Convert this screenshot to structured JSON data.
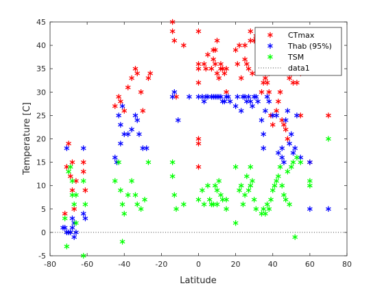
{
  "chart_data": {
    "type": "scatter",
    "xlabel": "Latitude",
    "ylabel": "Temperature [C]",
    "xlim": [
      -80,
      80
    ],
    "ylim": [
      -5,
      45
    ],
    "xticks": [
      -80,
      -60,
      -40,
      -20,
      0,
      20,
      40,
      60,
      80
    ],
    "yticks": [
      -5,
      0,
      5,
      10,
      15,
      20,
      25,
      30,
      35,
      40,
      45
    ],
    "grid": false,
    "legend_position": "top-right",
    "marker": "asterisk",
    "series": [
      {
        "name": "CTmax",
        "color": "#ff0000",
        "points": [
          [
            -72,
            4
          ],
          [
            -71,
            14
          ],
          [
            -70,
            19
          ],
          [
            -69,
            12
          ],
          [
            -68,
            15
          ],
          [
            -68,
            9
          ],
          [
            -67,
            5
          ],
          [
            -66,
            11
          ],
          [
            -62,
            15
          ],
          [
            -62,
            13
          ],
          [
            -61,
            9
          ],
          [
            -45,
            27
          ],
          [
            -43,
            29
          ],
          [
            -42,
            28
          ],
          [
            -40,
            26
          ],
          [
            -38,
            31
          ],
          [
            -36,
            33
          ],
          [
            -34,
            35
          ],
          [
            -33,
            34
          ],
          [
            -31,
            30
          ],
          [
            -30,
            26
          ],
          [
            -27,
            33
          ],
          [
            -26,
            34
          ],
          [
            -14,
            45
          ],
          [
            -14,
            43
          ],
          [
            -13,
            41
          ],
          [
            -12,
            29
          ],
          [
            -8,
            40
          ],
          [
            0,
            43
          ],
          [
            0,
            36
          ],
          [
            0,
            35
          ],
          [
            0,
            32
          ],
          [
            0,
            20
          ],
          [
            0,
            19
          ],
          [
            0,
            14
          ],
          [
            3,
            36
          ],
          [
            4,
            35
          ],
          [
            5,
            38
          ],
          [
            7,
            35
          ],
          [
            8,
            37
          ],
          [
            8,
            39
          ],
          [
            9,
            39
          ],
          [
            9,
            36
          ],
          [
            10,
            41
          ],
          [
            10,
            34
          ],
          [
            11,
            33
          ],
          [
            12,
            35
          ],
          [
            12,
            36
          ],
          [
            13,
            35
          ],
          [
            14,
            34
          ],
          [
            15,
            35
          ],
          [
            15,
            30
          ],
          [
            20,
            39
          ],
          [
            21,
            36
          ],
          [
            22,
            40
          ],
          [
            23,
            33
          ],
          [
            25,
            40
          ],
          [
            25,
            37
          ],
          [
            26,
            36
          ],
          [
            27,
            35
          ],
          [
            28,
            43
          ],
          [
            28,
            41
          ],
          [
            29,
            34
          ],
          [
            30,
            41
          ],
          [
            31,
            42
          ],
          [
            34,
            30
          ],
          [
            35,
            32
          ],
          [
            36,
            33
          ],
          [
            37,
            32
          ],
          [
            38,
            34
          ],
          [
            38,
            30
          ],
          [
            39,
            25
          ],
          [
            40,
            23
          ],
          [
            42,
            26
          ],
          [
            43,
            28
          ],
          [
            44,
            30
          ],
          [
            45,
            24
          ],
          [
            46,
            23
          ],
          [
            47,
            22
          ],
          [
            48,
            20
          ],
          [
            49,
            33
          ],
          [
            50,
            34
          ],
          [
            51,
            32
          ],
          [
            52,
            35
          ],
          [
            53,
            32
          ],
          [
            55,
            34
          ],
          [
            55,
            25
          ],
          [
            60,
            15
          ],
          [
            70,
            25
          ]
        ]
      },
      {
        "name": "Thab (95%)",
        "color": "#0000ff",
        "points": [
          [
            -73,
            1
          ],
          [
            -72,
            1
          ],
          [
            -71,
            0
          ],
          [
            -71,
            18
          ],
          [
            -70,
            0
          ],
          [
            -69,
            0
          ],
          [
            -68,
            3
          ],
          [
            -68,
            1
          ],
          [
            -67,
            2
          ],
          [
            -67,
            -1
          ],
          [
            -66,
            0
          ],
          [
            -62,
            18
          ],
          [
            -62,
            4
          ],
          [
            -61,
            3
          ],
          [
            -45,
            16
          ],
          [
            -44,
            15
          ],
          [
            -43,
            25
          ],
          [
            -42,
            23
          ],
          [
            -42,
            19
          ],
          [
            -41,
            27
          ],
          [
            -40,
            21
          ],
          [
            -38,
            21
          ],
          [
            -36,
            22
          ],
          [
            -34,
            25
          ],
          [
            -33,
            24
          ],
          [
            -32,
            21
          ],
          [
            -30,
            18
          ],
          [
            -28,
            18
          ],
          [
            -14,
            29
          ],
          [
            -13,
            30
          ],
          [
            -11,
            24
          ],
          [
            -5,
            29
          ],
          [
            0,
            29
          ],
          [
            2,
            29
          ],
          [
            3,
            28
          ],
          [
            4,
            29
          ],
          [
            5,
            29
          ],
          [
            7,
            29
          ],
          [
            8,
            29
          ],
          [
            9,
            29
          ],
          [
            10,
            29
          ],
          [
            11,
            29
          ],
          [
            12,
            29
          ],
          [
            13,
            28
          ],
          [
            14,
            28
          ],
          [
            15,
            29
          ],
          [
            16,
            29
          ],
          [
            17,
            28
          ],
          [
            20,
            27
          ],
          [
            21,
            29
          ],
          [
            23,
            26
          ],
          [
            24,
            29
          ],
          [
            25,
            29
          ],
          [
            26,
            28
          ],
          [
            27,
            29
          ],
          [
            28,
            28
          ],
          [
            29,
            27
          ],
          [
            30,
            29
          ],
          [
            31,
            29
          ],
          [
            32,
            28
          ],
          [
            34,
            24
          ],
          [
            35,
            21
          ],
          [
            35,
            18
          ],
          [
            36,
            26
          ],
          [
            37,
            29
          ],
          [
            38,
            28
          ],
          [
            40,
            25
          ],
          [
            42,
            25
          ],
          [
            43,
            17
          ],
          [
            45,
            18
          ],
          [
            45,
            16
          ],
          [
            46,
            15
          ],
          [
            47,
            24
          ],
          [
            48,
            26
          ],
          [
            49,
            19
          ],
          [
            50,
            21
          ],
          [
            51,
            17
          ],
          [
            52,
            18
          ],
          [
            53,
            25
          ],
          [
            55,
            16
          ],
          [
            60,
            15
          ],
          [
            60,
            5
          ],
          [
            70,
            5
          ]
        ]
      },
      {
        "name": "TSM",
        "color": "#00ff00",
        "points": [
          [
            -72,
            3
          ],
          [
            -71,
            -3
          ],
          [
            -70,
            13
          ],
          [
            -69,
            14
          ],
          [
            -68,
            11
          ],
          [
            -68,
            8
          ],
          [
            -67,
            6
          ],
          [
            -66,
            8
          ],
          [
            -66,
            2
          ],
          [
            -62,
            -5
          ],
          [
            -62,
            11
          ],
          [
            -61,
            6
          ],
          [
            -45,
            11
          ],
          [
            -43,
            15
          ],
          [
            -42,
            9
          ],
          [
            -41,
            -2
          ],
          [
            -41,
            6
          ],
          [
            -40,
            4
          ],
          [
            -38,
            8
          ],
          [
            -36,
            11
          ],
          [
            -34,
            8
          ],
          [
            -33,
            6
          ],
          [
            -31,
            5
          ],
          [
            -29,
            7
          ],
          [
            -27,
            15
          ],
          [
            -14,
            15
          ],
          [
            -14,
            12
          ],
          [
            -13,
            8
          ],
          [
            -12,
            5
          ],
          [
            -8,
            6
          ],
          [
            0,
            7
          ],
          [
            2,
            9
          ],
          [
            3,
            6
          ],
          [
            5,
            10
          ],
          [
            6,
            7
          ],
          [
            7,
            6
          ],
          [
            8,
            6
          ],
          [
            9,
            10
          ],
          [
            10,
            6
          ],
          [
            10,
            9
          ],
          [
            11,
            11
          ],
          [
            12,
            8
          ],
          [
            13,
            7
          ],
          [
            15,
            7
          ],
          [
            15,
            5
          ],
          [
            20,
            14
          ],
          [
            20,
            2
          ],
          [
            22,
            9
          ],
          [
            23,
            10
          ],
          [
            24,
            6
          ],
          [
            25,
            8
          ],
          [
            26,
            12
          ],
          [
            27,
            9
          ],
          [
            28,
            14
          ],
          [
            28,
            10
          ],
          [
            29,
            11
          ],
          [
            30,
            7
          ],
          [
            31,
            5
          ],
          [
            34,
            4
          ],
          [
            35,
            5
          ],
          [
            36,
            4
          ],
          [
            37,
            6
          ],
          [
            38,
            5
          ],
          [
            39,
            7
          ],
          [
            40,
            9
          ],
          [
            41,
            10
          ],
          [
            42,
            11
          ],
          [
            43,
            12
          ],
          [
            44,
            14
          ],
          [
            45,
            10
          ],
          [
            46,
            8
          ],
          [
            47,
            7
          ],
          [
            48,
            13
          ],
          [
            49,
            6
          ],
          [
            50,
            14
          ],
          [
            51,
            15
          ],
          [
            52,
            -1
          ],
          [
            53,
            16
          ],
          [
            55,
            15
          ],
          [
            60,
            11
          ],
          [
            60,
            10
          ],
          [
            70,
            20
          ]
        ]
      },
      {
        "name": "data1",
        "color": "#000000",
        "line_style": "dotted",
        "points": [
          [
            -80,
            0
          ],
          [
            80,
            0
          ]
        ]
      }
    ]
  }
}
